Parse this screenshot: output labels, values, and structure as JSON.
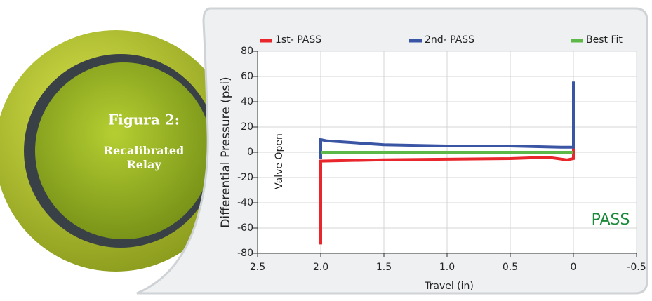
{
  "figure": {
    "label": "Figura 2:",
    "caption": "Recalibrated Relay"
  },
  "chart_data": {
    "type": "line",
    "xlabel": "Travel (in)",
    "ylabel": "Differential Pressure (psi)",
    "annotations": [
      "Valve Open",
      "PASS"
    ],
    "xlim": [
      2.5,
      -0.5
    ],
    "xticks": [
      2.5,
      {
        "value": 2,
        "label": "2.0"
      },
      1.5,
      {
        "value": 1,
        "label": "1.0"
      },
      0.5,
      0,
      -0.5
    ],
    "ylim": [
      -80,
      80
    ],
    "yticks": [
      -80,
      -60,
      -40,
      -20,
      0,
      20,
      40,
      60,
      80
    ],
    "grid": true,
    "legend": "top",
    "series": [
      {
        "name": "1st- PASS",
        "color": "#e8262b",
        "x": [
          2.0,
          2.0,
          1.5,
          1.0,
          0.5,
          0.2,
          0.05,
          0.0,
          0.0
        ],
        "values": [
          -73,
          -7,
          -6,
          -5.5,
          -5,
          -4,
          -6,
          -5,
          52
        ]
      },
      {
        "name": "2nd- PASS",
        "color": "#3b55a5",
        "x": [
          2.0,
          2.0,
          1.95,
          1.5,
          1.0,
          0.5,
          0.1,
          0.0,
          0.0
        ],
        "values": [
          -5,
          10,
          9,
          6,
          5,
          5,
          4,
          4,
          56
        ]
      },
      {
        "name": "Best Fit",
        "color": "#5cb947",
        "x": [
          2.0,
          0.0
        ],
        "values": [
          0,
          0
        ]
      }
    ]
  }
}
